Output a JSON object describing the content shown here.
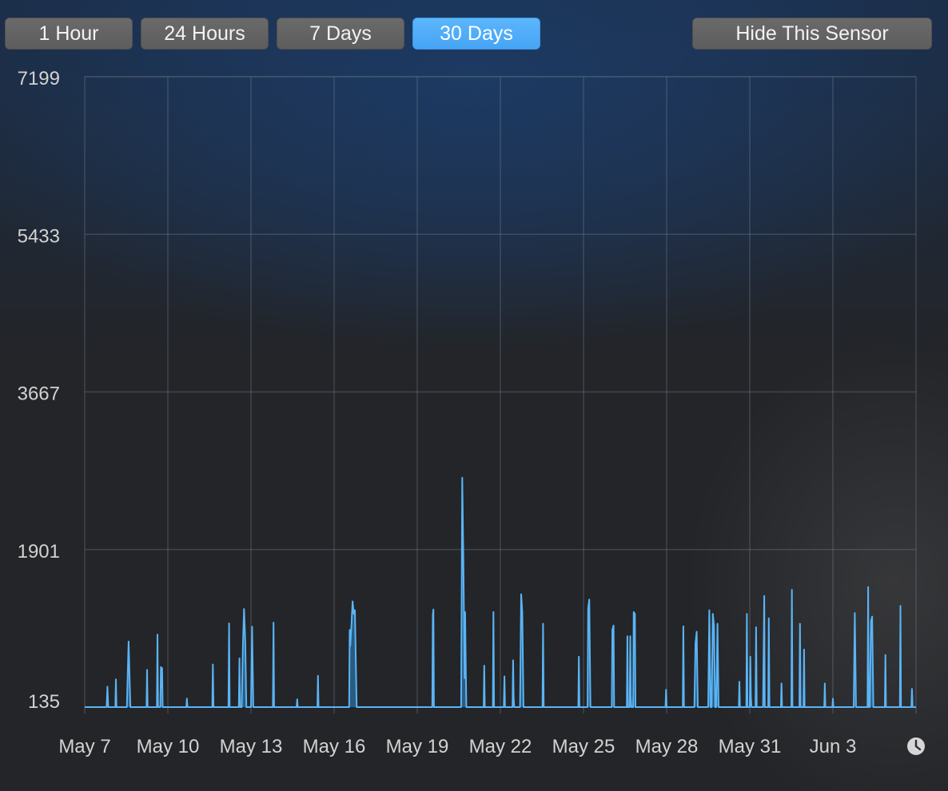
{
  "toolbar": {
    "range_buttons": [
      "1 Hour",
      "24 Hours",
      "7 Days",
      "30 Days"
    ],
    "active_range": "30 Days",
    "hide_label": "Hide This Sensor"
  },
  "colors": {
    "line": "#5ab4f5",
    "fill": "#2c6e9e",
    "active_button": "#4fabf8"
  },
  "icons": {
    "time_range": "clock-icon"
  },
  "chart_data": {
    "type": "area",
    "grid": true,
    "ylim": [
      135,
      7199
    ],
    "y_ticks": [
      7199,
      5433,
      3667,
      1901,
      135
    ],
    "xlim": [
      "May 7",
      "Jun 6"
    ],
    "x_ticks": [
      "May 7",
      "May 10",
      "May 13",
      "May 16",
      "May 19",
      "May 22",
      "May 25",
      "May 28",
      "May 31",
      "Jun 3"
    ],
    "baseline": 135,
    "series": [
      {
        "values": [
          [
            "May 7 00:00",
            135
          ],
          [
            "May 7 19:00",
            135
          ],
          [
            "May 7 19:40",
            364
          ],
          [
            "May 7 20:20",
            135
          ],
          [
            "May 8 02:30",
            135
          ],
          [
            "May 8 03:00",
            446
          ],
          [
            "May 8 03:30",
            135
          ],
          [
            "May 8 12:30",
            135
          ],
          [
            "May 8 14:00",
            870
          ],
          [
            "May 8 15:30",
            135
          ],
          [
            "May 9 05:30",
            135
          ],
          [
            "May 9 06:00",
            552
          ],
          [
            "May 9 06:30",
            135
          ],
          [
            "May 9 14:30",
            135
          ],
          [
            "May 9 15:00",
            947
          ],
          [
            "May 9 15:30",
            135
          ],
          [
            "May 9 17:30",
            135
          ],
          [
            "May 9 18:00",
            584
          ],
          [
            "May 9 18:30",
            359
          ],
          [
            "May 9 19:00",
            573
          ],
          [
            "May 9 19:30",
            135
          ],
          [
            "May 10 16:00",
            135
          ],
          [
            "May 10 16:30",
            231
          ],
          [
            "May 10 17:00",
            135
          ],
          [
            "May 11 14:30",
            135
          ],
          [
            "May 11 15:00",
            613
          ],
          [
            "May 11 15:30",
            135
          ],
          [
            "May 12 04:30",
            135
          ],
          [
            "May 12 05:00",
            1073
          ],
          [
            "May 12 05:30",
            135
          ],
          [
            "May 12 13:30",
            135
          ],
          [
            "May 12 14:00",
            681
          ],
          [
            "May 12 14:30",
            135
          ],
          [
            "May 12 16:00",
            135
          ],
          [
            "May 12 17:00",
            829
          ],
          [
            "May 12 18:00",
            1235
          ],
          [
            "May 12 19:00",
            880
          ],
          [
            "May 12 20:00",
            135
          ],
          [
            "May 13 00:00",
            135
          ],
          [
            "May 13 01:00",
            1037
          ],
          [
            "May 13 02:00",
            135
          ],
          [
            "May 13 19:00",
            135
          ],
          [
            "May 13 19:30",
            1081
          ],
          [
            "May 13 20:00",
            135
          ],
          [
            "May 14 15:30",
            135
          ],
          [
            "May 14 16:00",
            223
          ],
          [
            "May 14 16:30",
            135
          ],
          [
            "May 15 09:30",
            135
          ],
          [
            "May 15 10:00",
            486
          ],
          [
            "May 15 10:30",
            135
          ],
          [
            "May 16 13:00",
            135
          ],
          [
            "May 16 13:30",
            1000
          ],
          [
            "May 16 14:00",
            820
          ],
          [
            "May 16 15:00",
            1060
          ],
          [
            "May 16 16:00",
            1320
          ],
          [
            "May 16 17:00",
            1180
          ],
          [
            "May 16 18:00",
            1220
          ],
          [
            "May 16 19:30",
            135
          ],
          [
            "May 19 00:00",
            135
          ],
          [
            "May 19 00:30",
            135
          ],
          [
            "May 19 13:00",
            135
          ],
          [
            "May 19 13:30",
            1170
          ],
          [
            "May 19 14:00",
            1230
          ],
          [
            "May 19 14:30",
            135
          ],
          [
            "May 20 14:00",
            135
          ],
          [
            "May 20 15:00",
            2705
          ],
          [
            "May 20 16:00",
            1720
          ],
          [
            "May 20 17:00",
            460
          ],
          [
            "May 20 17:30",
            1200
          ],
          [
            "May 20 18:00",
            600
          ],
          [
            "May 20 18:30",
            135
          ],
          [
            "May 21 09:30",
            135
          ],
          [
            "May 21 10:00",
            600
          ],
          [
            "May 21 10:30",
            135
          ],
          [
            "May 21 17:30",
            135
          ],
          [
            "May 21 18:00",
            1200
          ],
          [
            "May 21 18:30",
            135
          ],
          [
            "May 22 03:00",
            135
          ],
          [
            "May 22 03:30",
            480
          ],
          [
            "May 22 04:00",
            135
          ],
          [
            "May 22 10:30",
            135
          ],
          [
            "May 22 11:00",
            660
          ],
          [
            "May 22 11:30",
            250
          ],
          [
            "May 22 12:00",
            135
          ],
          [
            "May 22 17:00",
            135
          ],
          [
            "May 22 18:00",
            1400
          ],
          [
            "May 22 19:00",
            1200
          ],
          [
            "May 22 20:00",
            135
          ],
          [
            "May 23 12:30",
            135
          ],
          [
            "May 23 13:00",
            1070
          ],
          [
            "May 23 13:30",
            135
          ],
          [
            "May 24 19:30",
            135
          ],
          [
            "May 24 20:00",
            700
          ],
          [
            "May 24 20:30",
            135
          ],
          [
            "May 25 03:30",
            135
          ],
          [
            "May 25 04:00",
            1240
          ],
          [
            "May 25 05:00",
            1340
          ],
          [
            "May 25 06:00",
            135
          ],
          [
            "May 26 00:30",
            135
          ],
          [
            "May 26 01:00",
            1000
          ],
          [
            "May 26 02:00",
            1050
          ],
          [
            "May 26 02:30",
            135
          ],
          [
            "May 26 13:30",
            135
          ],
          [
            "May 26 14:00",
            930
          ],
          [
            "May 26 14:30",
            135
          ],
          [
            "May 26 16:00",
            135
          ],
          [
            "May 26 16:30",
            930
          ],
          [
            "May 26 17:00",
            250
          ],
          [
            "May 26 17:30",
            135
          ],
          [
            "May 26 19:00",
            135
          ],
          [
            "May 26 19:30",
            1200
          ],
          [
            "May 26 20:30",
            1180
          ],
          [
            "May 26 21:00",
            135
          ],
          [
            "May 27 23:00",
            135
          ],
          [
            "May 27 23:30",
            330
          ],
          [
            "May 28 00:00",
            135
          ],
          [
            "May 28 14:00",
            135
          ],
          [
            "May 28 14:30",
            1040
          ],
          [
            "May 28 15:00",
            135
          ],
          [
            "May 29 00:00",
            135
          ],
          [
            "May 29 01:00",
            850
          ],
          [
            "May 29 02:00",
            980
          ],
          [
            "May 29 03:00",
            135
          ],
          [
            "May 29 12:00",
            135
          ],
          [
            "May 29 13:00",
            1220
          ],
          [
            "May 29 14:00",
            135
          ],
          [
            "May 29 15:00",
            135
          ],
          [
            "May 29 16:00",
            1180
          ],
          [
            "May 29 17:00",
            1050
          ],
          [
            "May 29 18:00",
            135
          ],
          [
            "May 29 19:00",
            135
          ],
          [
            "May 29 20:00",
            1070
          ],
          [
            "May 29 21:00",
            135
          ],
          [
            "May 30 14:30",
            135
          ],
          [
            "May 30 15:00",
            420
          ],
          [
            "May 30 15:30",
            135
          ],
          [
            "May 30 21:00",
            135
          ],
          [
            "May 30 21:30",
            1180
          ],
          [
            "May 30 22:00",
            135
          ],
          [
            "May 31 00:00",
            135
          ],
          [
            "May 31 00:30",
            700
          ],
          [
            "May 31 01:00",
            250
          ],
          [
            "May 31 01:30",
            135
          ],
          [
            "May 31 05:00",
            135
          ],
          [
            "May 31 05:30",
            1030
          ],
          [
            "May 31 06:00",
            135
          ],
          [
            "May 31 11:30",
            135
          ],
          [
            "May 31 12:30",
            1380
          ],
          [
            "May 31 13:00",
            135
          ],
          [
            "May 31 16:00",
            135
          ],
          [
            "May 31 16:30",
            1130
          ],
          [
            "May 31 17:00",
            135
          ],
          [
            "Jun 1 03:00",
            135
          ],
          [
            "Jun 1 03:30",
            400
          ],
          [
            "Jun 1 04:00",
            135
          ],
          [
            "Jun 1 12:00",
            135
          ],
          [
            "Jun 1 12:30",
            1450
          ],
          [
            "Jun 1 13:00",
            135
          ],
          [
            "Jun 1 19:00",
            135
          ],
          [
            "Jun 1 19:30",
            1070
          ],
          [
            "Jun 1 20:00",
            135
          ],
          [
            "Jun 1 22:30",
            135
          ],
          [
            "Jun 1 23:00",
            780
          ],
          [
            "Jun 1 23:30",
            135
          ],
          [
            "Jun 2 16:30",
            135
          ],
          [
            "Jun 2 17:00",
            400
          ],
          [
            "Jun 2 17:30",
            135
          ],
          [
            "Jun 2 23:30",
            135
          ],
          [
            "Jun 3 00:00",
            230
          ],
          [
            "Jun 3 00:30",
            135
          ],
          [
            "Jun 3 18:00",
            135
          ],
          [
            "Jun 3 19:00",
            1190
          ],
          [
            "Jun 3 20:00",
            135
          ],
          [
            "Jun 4 06:00",
            135
          ],
          [
            "Jun 4 06:30",
            1480
          ],
          [
            "Jun 4 07:00",
            135
          ],
          [
            "Jun 4 08:00",
            135
          ],
          [
            "Jun 4 09:00",
            1100
          ],
          [
            "Jun 4 10:00",
            1150
          ],
          [
            "Jun 4 11:00",
            135
          ],
          [
            "Jun 4 21:00",
            135
          ],
          [
            "Jun 4 21:30",
            720
          ],
          [
            "Jun 4 22:00",
            135
          ],
          [
            "Jun 5 10:00",
            135
          ],
          [
            "Jun 5 10:30",
            1270
          ],
          [
            "Jun 5 11:00",
            135
          ],
          [
            "Jun 5 20:00",
            135
          ],
          [
            "Jun 5 20:30",
            340
          ],
          [
            "Jun 5 21:00",
            135
          ],
          [
            "Jun 6 00:00",
            135
          ]
        ]
      }
    ]
  }
}
